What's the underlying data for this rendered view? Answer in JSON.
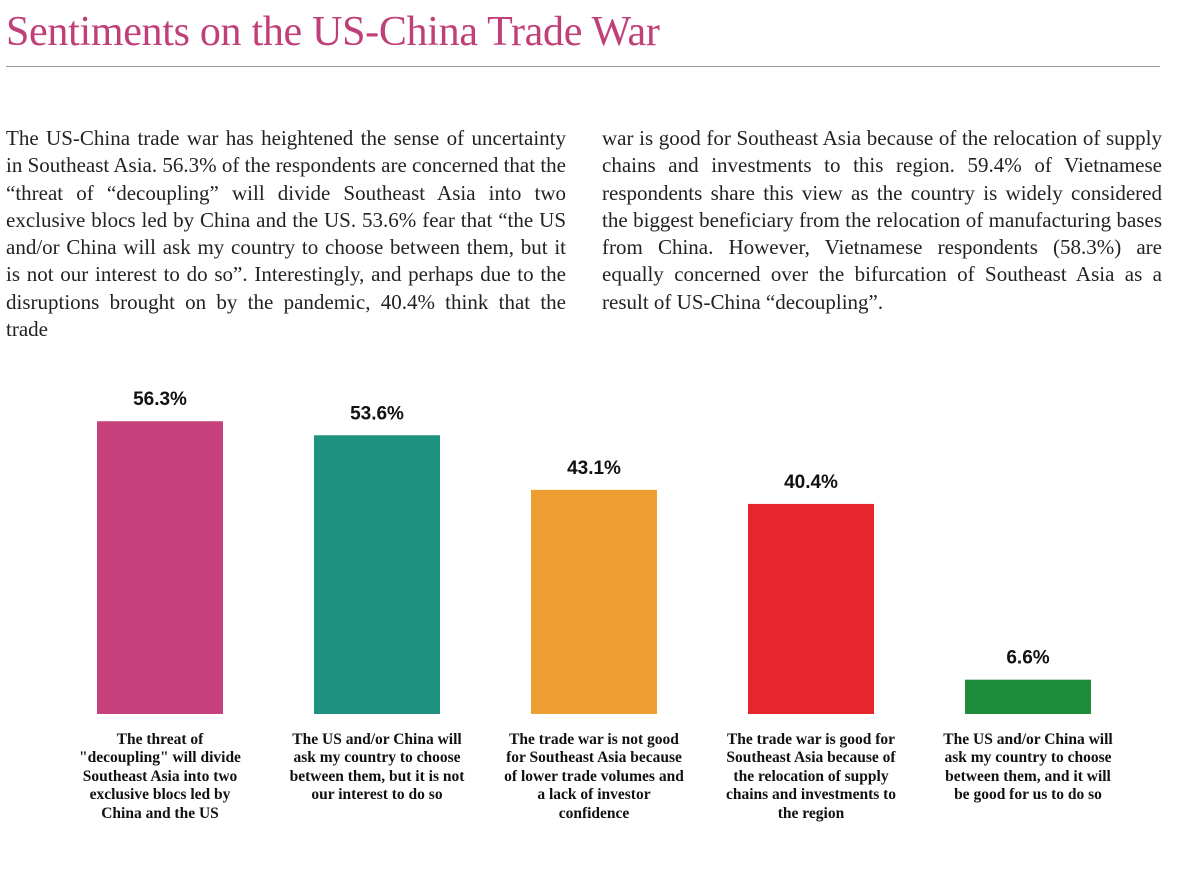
{
  "page": {
    "title": "Sentiments on the US-China Trade War",
    "paragraph_left": "The US-China trade war has heightened the sense of uncertainty in Southeast Asia. 56.3% of the respondents are concerned that the “threat of “decoupling” will divide Southeast Asia into two exclusive blocs led by China and the US. 53.6% fear that “the US and/or China will ask my country to choose between them, but it is not our interest to do so”. Interestingly, and perhaps due to the disruptions brought on by the pandemic, 40.4% think that the trade",
    "paragraph_right": "war is good for Southeast Asia because of the relocation of supply chains and investments to this region. 59.4% of Vietnamese respondents share this view as the country is widely considered the biggest beneficiary from the relocation of manufacturing bases from China. However, Vietnamese respondents (58.3%) are equally concerned over the bifurcation of Southeast Asia as a result of US-China “decoupling”."
  },
  "colors": {
    "title": "#c03f79",
    "bars": [
      "#c6417b",
      "#1e9181",
      "#ee9f32",
      "#e5262c",
      "#1f8c3b"
    ]
  },
  "chart_data": {
    "type": "bar",
    "categories": [
      "The threat of \"decoupling\" will divide Southeast Asia into two exclusive blocs led by China and the US",
      "The US and/or China will ask my country to choose between them, but it is not our interest to do so",
      "The trade war is not good for Southeast Asia because of lower trade volumes and a lack of investor confidence",
      "The trade war is good for Southeast Asia because of the relocation of supply chains and investments to the region",
      "The US and/or China will ask my country to choose between them, and it will be good for us to do so"
    ],
    "values": [
      56.3,
      53.6,
      43.1,
      40.4,
      6.6
    ],
    "value_labels": [
      "56.3%",
      "53.6%",
      "43.1%",
      "40.4%",
      "6.6%"
    ],
    "ylim": [
      0,
      60
    ],
    "grid": false,
    "legend": "none"
  }
}
